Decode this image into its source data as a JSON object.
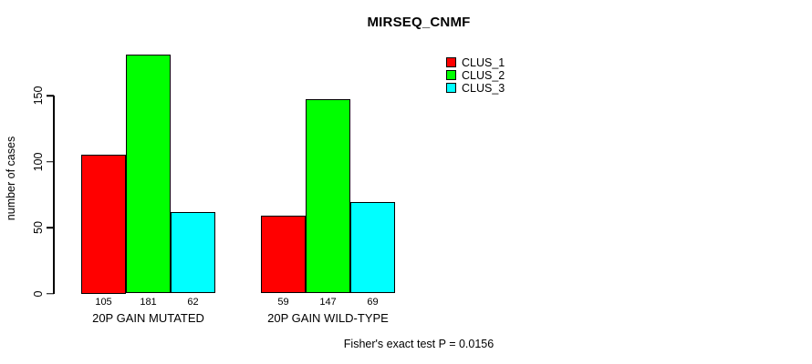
{
  "chart_data": {
    "type": "bar",
    "title": "MIRSEQ_CNMF",
    "ylabel": "number of cases",
    "xlabel": "",
    "categories": [
      "20P GAIN MUTATED",
      "20P GAIN WILD-TYPE"
    ],
    "series": [
      {
        "name": "CLUS_1",
        "color": "#ff0000",
        "values": [
          105,
          59
        ]
      },
      {
        "name": "CLUS_2",
        "color": "#00ff00",
        "values": [
          181,
          147
        ]
      },
      {
        "name": "CLUS_3",
        "color": "#00ffff",
        "values": [
          62,
          69
        ]
      }
    ],
    "bar_value_labels": [
      [
        105,
        181,
        62
      ],
      [
        59,
        147,
        69
      ]
    ],
    "ylim": [
      0,
      150
    ],
    "yticks": [
      0,
      50,
      100,
      150
    ],
    "grid": false,
    "legend_position": "top-right",
    "annotation": "Fisher's exact test P = 0.0156"
  }
}
